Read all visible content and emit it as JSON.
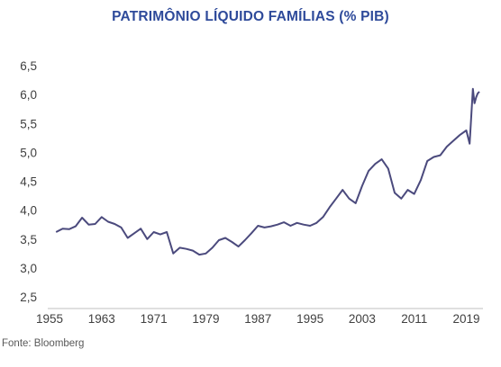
{
  "chart_data": {
    "type": "line",
    "title": "PATRIMÔNIO LÍQUIDO FAMÍLIAS (% PIB)",
    "xlabel": "",
    "ylabel": "",
    "x_ticks": [
      "1955",
      "1963",
      "1971",
      "1979",
      "1987",
      "1995",
      "2003",
      "2011",
      "2019"
    ],
    "y_ticks": [
      "2,5",
      "3,0",
      "3,5",
      "4,0",
      "4,5",
      "5,0",
      "5,5",
      "6,0",
      "6,5"
    ],
    "xlim": [
      1955,
      2021
    ],
    "ylim": [
      2.5,
      6.5
    ],
    "grid": false,
    "legend": "none",
    "line_color": "#4b4a7d",
    "series": [
      {
        "x": [
          1956,
          1957,
          1958,
          1959,
          1960,
          1961,
          1962,
          1963,
          1964,
          1965,
          1966,
          1967,
          1968,
          1969,
          1970,
          1971,
          1972,
          1973,
          1974,
          1975,
          1976,
          1977,
          1978,
          1979,
          1980,
          1981,
          1982,
          1983,
          1984,
          1985,
          1986,
          1987,
          1988,
          1989,
          1990,
          1991,
          1992,
          1993,
          1994,
          1995,
          1996,
          1997,
          1998,
          1999,
          2000,
          2001,
          2002,
          2003,
          2004,
          2005,
          2006,
          2007,
          2008,
          2009,
          2010,
          2011,
          2012,
          2013,
          2014,
          2015,
          2016,
          2017,
          2018,
          2019,
          2019.5,
          2020,
          2020.25,
          2020.5,
          2020.75,
          2021
        ],
        "y": [
          3.62,
          3.68,
          3.67,
          3.72,
          3.87,
          3.75,
          3.76,
          3.88,
          3.8,
          3.76,
          3.7,
          3.52,
          3.6,
          3.68,
          3.5,
          3.62,
          3.58,
          3.62,
          3.25,
          3.35,
          3.33,
          3.3,
          3.23,
          3.25,
          3.35,
          3.48,
          3.52,
          3.45,
          3.37,
          3.48,
          3.6,
          3.73,
          3.7,
          3.72,
          3.75,
          3.79,
          3.73,
          3.78,
          3.75,
          3.73,
          3.78,
          3.88,
          4.05,
          4.2,
          4.35,
          4.2,
          4.12,
          4.42,
          4.68,
          4.8,
          4.88,
          4.72,
          4.3,
          4.2,
          4.35,
          4.28,
          4.52,
          4.85,
          4.92,
          4.95,
          5.1,
          5.2,
          5.3,
          5.38,
          5.15,
          6.1,
          5.85,
          5.95,
          6.02,
          6.05
        ]
      }
    ]
  },
  "footer": {
    "source": "Fonte: Bloomberg"
  }
}
